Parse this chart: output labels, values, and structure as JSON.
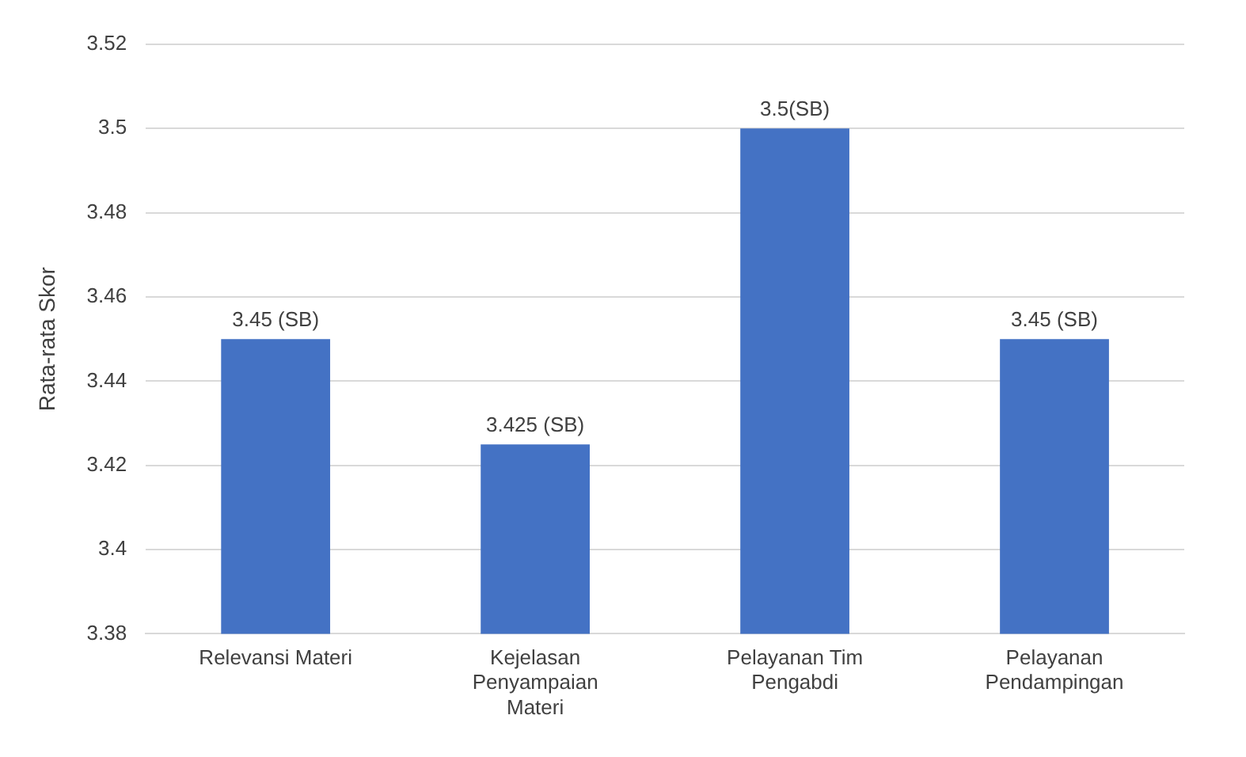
{
  "chart_data": {
    "type": "bar",
    "ylabel": "Rata-rata Skor",
    "categories": [
      "Relevansi Materi",
      "Kejelasan Penyampaian Materi",
      "Pelayanan Tim Pengabdi",
      "Pelayanan Pendampingan"
    ],
    "values": [
      3.45,
      3.425,
      3.5,
      3.45
    ],
    "value_labels": [
      "3.45 (SB)",
      "3.425 (SB)",
      "3.5(SB)",
      "3.45 (SB)"
    ],
    "color": "#4472c4",
    "ylim": [
      3.38,
      3.52
    ],
    "yticks": [
      3.38,
      3.4,
      3.42,
      3.44,
      3.46,
      3.48,
      3.5,
      3.52
    ],
    "grid": "y",
    "legend": false
  }
}
